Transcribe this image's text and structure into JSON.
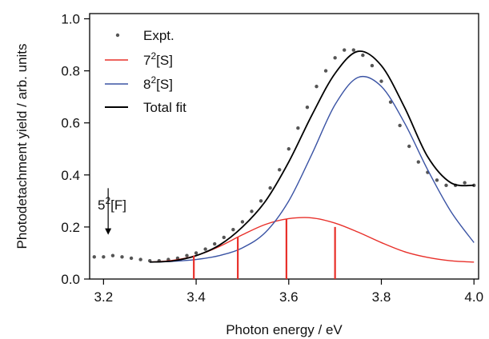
{
  "chart_data": {
    "type": "line",
    "title": "",
    "xlabel": "Photon energy / eV",
    "ylabel": "Photodetachment yield / arb. units",
    "xlim": [
      3.17,
      4.01
    ],
    "ylim": [
      0.0,
      1.02
    ],
    "x_ticks": [
      "3.2",
      "3.4",
      "3.6",
      "3.8",
      "4.0"
    ],
    "y_ticks": [
      "0.0",
      "0.2",
      "0.4",
      "0.6",
      "0.8",
      "1.0"
    ],
    "x_tick_values": [
      3.2,
      3.4,
      3.6,
      3.8,
      4.0
    ],
    "y_tick_values": [
      0.0,
      0.2,
      0.4,
      0.6,
      0.8,
      1.0
    ],
    "grid": false,
    "legend_position": "top-left",
    "series": [
      {
        "name": "Expt.",
        "kind": "scatter",
        "color": "#555555",
        "x": [
          3.18,
          3.2,
          3.22,
          3.24,
          3.26,
          3.28,
          3.3,
          3.32,
          3.34,
          3.36,
          3.38,
          3.4,
          3.42,
          3.44,
          3.46,
          3.48,
          3.5,
          3.52,
          3.54,
          3.56,
          3.58,
          3.6,
          3.62,
          3.64,
          3.66,
          3.68,
          3.7,
          3.72,
          3.74,
          3.76,
          3.78,
          3.8,
          3.82,
          3.84,
          3.86,
          3.88,
          3.9,
          3.92,
          3.94,
          3.96,
          3.98,
          4.0
        ],
        "y": [
          0.085,
          0.085,
          0.09,
          0.085,
          0.08,
          0.075,
          0.07,
          0.07,
          0.075,
          0.08,
          0.09,
          0.1,
          0.115,
          0.135,
          0.16,
          0.19,
          0.22,
          0.26,
          0.3,
          0.35,
          0.42,
          0.5,
          0.58,
          0.66,
          0.74,
          0.8,
          0.85,
          0.88,
          0.88,
          0.86,
          0.82,
          0.76,
          0.68,
          0.59,
          0.51,
          0.45,
          0.41,
          0.38,
          0.36,
          0.36,
          0.37,
          0.36
        ]
      },
      {
        "name": "7²[S]",
        "name_base": "7",
        "name_sup": "2",
        "name_rest": "[S]",
        "kind": "line",
        "color": "#e8302a",
        "x": [
          3.3,
          3.35,
          3.4,
          3.45,
          3.5,
          3.55,
          3.6,
          3.65,
          3.7,
          3.75,
          3.8,
          3.85,
          3.9,
          3.95,
          4.0
        ],
        "y": [
          0.065,
          0.072,
          0.09,
          0.125,
          0.17,
          0.21,
          0.232,
          0.235,
          0.215,
          0.18,
          0.14,
          0.105,
          0.083,
          0.07,
          0.065
        ]
      },
      {
        "name": "8²[S]",
        "name_base": "8",
        "name_sup": "2",
        "name_rest": "[S]",
        "kind": "line",
        "color": "#3a53a4",
        "x": [
          3.3,
          3.35,
          3.4,
          3.45,
          3.5,
          3.55,
          3.6,
          3.65,
          3.7,
          3.75,
          3.8,
          3.85,
          3.9,
          3.95,
          4.0
        ],
        "y": [
          0.065,
          0.068,
          0.075,
          0.09,
          0.12,
          0.18,
          0.3,
          0.48,
          0.67,
          0.775,
          0.74,
          0.6,
          0.42,
          0.26,
          0.14
        ]
      },
      {
        "name": "Total fit",
        "kind": "line",
        "color": "#000000",
        "x": [
          3.3,
          3.35,
          3.4,
          3.45,
          3.5,
          3.55,
          3.6,
          3.65,
          3.7,
          3.75,
          3.8,
          3.85,
          3.9,
          3.95,
          4.0
        ],
        "y": [
          0.065,
          0.07,
          0.09,
          0.13,
          0.2,
          0.3,
          0.45,
          0.63,
          0.79,
          0.875,
          0.82,
          0.66,
          0.47,
          0.37,
          0.36
        ]
      }
    ],
    "stick_lines": {
      "color": "#e8302a",
      "x": [
        3.395,
        3.49,
        3.595,
        3.7
      ],
      "y": [
        0.09,
        0.16,
        0.23,
        0.2
      ]
    },
    "annotation": {
      "text_base": "5",
      "text_sup": "2",
      "text_rest": "[F]",
      "x": 3.21,
      "y": 0.3,
      "arrow_to_y": 0.17
    }
  }
}
